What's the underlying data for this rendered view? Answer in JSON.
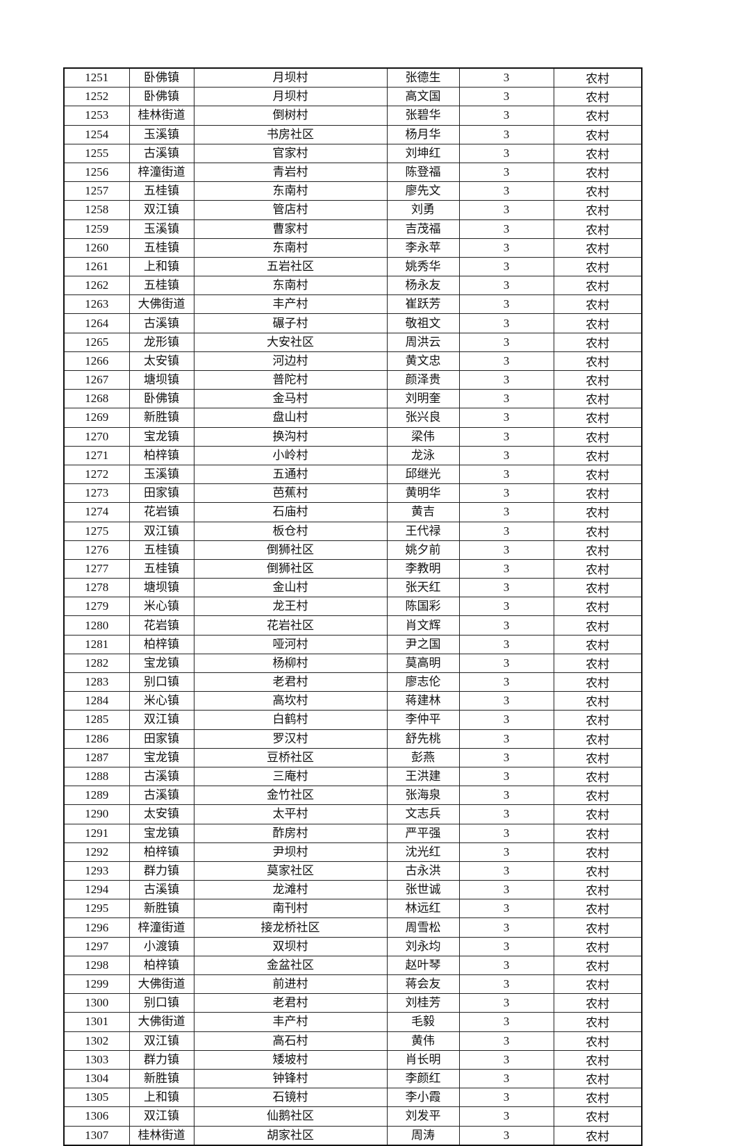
{
  "table": {
    "rows": [
      [
        "1251",
        "卧佛镇",
        "月坝村",
        "张德生",
        "3",
        "农村"
      ],
      [
        "1252",
        "卧佛镇",
        "月坝村",
        "高文国",
        "3",
        "农村"
      ],
      [
        "1253",
        "桂林街道",
        "倒树村",
        "张碧华",
        "3",
        "农村"
      ],
      [
        "1254",
        "玉溪镇",
        "书房社区",
        "杨月华",
        "3",
        "农村"
      ],
      [
        "1255",
        "古溪镇",
        "官家村",
        "刘坤红",
        "3",
        "农村"
      ],
      [
        "1256",
        "梓潼街道",
        "青岩村",
        "陈登福",
        "3",
        "农村"
      ],
      [
        "1257",
        "五桂镇",
        "东南村",
        "廖先文",
        "3",
        "农村"
      ],
      [
        "1258",
        "双江镇",
        "管店村",
        "刘勇",
        "3",
        "农村"
      ],
      [
        "1259",
        "玉溪镇",
        "曹家村",
        "吉茂福",
        "3",
        "农村"
      ],
      [
        "1260",
        "五桂镇",
        "东南村",
        "李永苹",
        "3",
        "农村"
      ],
      [
        "1261",
        "上和镇",
        "五岩社区",
        "姚秀华",
        "3",
        "农村"
      ],
      [
        "1262",
        "五桂镇",
        "东南村",
        "杨永友",
        "3",
        "农村"
      ],
      [
        "1263",
        "大佛街道",
        "丰产村",
        "崔跃芳",
        "3",
        "农村"
      ],
      [
        "1264",
        "古溪镇",
        "碾子村",
        "敬祖文",
        "3",
        "农村"
      ],
      [
        "1265",
        "龙形镇",
        "大安社区",
        "周洪云",
        "3",
        "农村"
      ],
      [
        "1266",
        "太安镇",
        "河边村",
        "黄文忠",
        "3",
        "农村"
      ],
      [
        "1267",
        "塘坝镇",
        "普陀村",
        "颜泽贵",
        "3",
        "农村"
      ],
      [
        "1268",
        "卧佛镇",
        "金马村",
        "刘明奎",
        "3",
        "农村"
      ],
      [
        "1269",
        "新胜镇",
        "盘山村",
        "张兴良",
        "3",
        "农村"
      ],
      [
        "1270",
        "宝龙镇",
        "换沟村",
        "梁伟",
        "3",
        "农村"
      ],
      [
        "1271",
        "柏梓镇",
        "小岭村",
        "龙泳",
        "3",
        "农村"
      ],
      [
        "1272",
        "玉溪镇",
        "五通村",
        "邱继光",
        "3",
        "农村"
      ],
      [
        "1273",
        "田家镇",
        "芭蕉村",
        "黄明华",
        "3",
        "农村"
      ],
      [
        "1274",
        "花岩镇",
        "石庙村",
        "黄吉",
        "3",
        "农村"
      ],
      [
        "1275",
        "双江镇",
        "板仓村",
        "王代禄",
        "3",
        "农村"
      ],
      [
        "1276",
        "五桂镇",
        "倒狮社区",
        "姚夕前",
        "3",
        "农村"
      ],
      [
        "1277",
        "五桂镇",
        "倒狮社区",
        "李教明",
        "3",
        "农村"
      ],
      [
        "1278",
        "塘坝镇",
        "金山村",
        "张天红",
        "3",
        "农村"
      ],
      [
        "1279",
        "米心镇",
        "龙王村",
        "陈国彩",
        "3",
        "农村"
      ],
      [
        "1280",
        "花岩镇",
        "花岩社区",
        "肖文辉",
        "3",
        "农村"
      ],
      [
        "1281",
        "柏梓镇",
        "哑河村",
        "尹之国",
        "3",
        "农村"
      ],
      [
        "1282",
        "宝龙镇",
        "杨柳村",
        "莫高明",
        "3",
        "农村"
      ],
      [
        "1283",
        "别口镇",
        "老君村",
        "廖志伦",
        "3",
        "农村"
      ],
      [
        "1284",
        "米心镇",
        "高坎村",
        "蒋建林",
        "3",
        "农村"
      ],
      [
        "1285",
        "双江镇",
        "白鹤村",
        "李仲平",
        "3",
        "农村"
      ],
      [
        "1286",
        "田家镇",
        "罗汉村",
        "舒先桃",
        "3",
        "农村"
      ],
      [
        "1287",
        "宝龙镇",
        "豆桥社区",
        "彭燕",
        "3",
        "农村"
      ],
      [
        "1288",
        "古溪镇",
        "三庵村",
        "王洪建",
        "3",
        "农村"
      ],
      [
        "1289",
        "古溪镇",
        "金竹社区",
        "张海泉",
        "3",
        "农村"
      ],
      [
        "1290",
        "太安镇",
        "太平村",
        "文志兵",
        "3",
        "农村"
      ],
      [
        "1291",
        "宝龙镇",
        "酢房村",
        "严平强",
        "3",
        "农村"
      ],
      [
        "1292",
        "柏梓镇",
        "尹坝村",
        "沈光红",
        "3",
        "农村"
      ],
      [
        "1293",
        "群力镇",
        "莫家社区",
        "古永洪",
        "3",
        "农村"
      ],
      [
        "1294",
        "古溪镇",
        "龙滩村",
        "张世诚",
        "3",
        "农村"
      ],
      [
        "1295",
        "新胜镇",
        "南刊村",
        "林远红",
        "3",
        "农村"
      ],
      [
        "1296",
        "梓潼街道",
        "接龙桥社区",
        "周雪松",
        "3",
        "农村"
      ],
      [
        "1297",
        "小渡镇",
        "双坝村",
        "刘永均",
        "3",
        "农村"
      ],
      [
        "1298",
        "柏梓镇",
        "金盆社区",
        "赵叶琴",
        "3",
        "农村"
      ],
      [
        "1299",
        "大佛街道",
        "前进村",
        "蒋会友",
        "3",
        "农村"
      ],
      [
        "1300",
        "别口镇",
        "老君村",
        "刘桂芳",
        "3",
        "农村"
      ],
      [
        "1301",
        "大佛街道",
        "丰产村",
        "毛毅",
        "3",
        "农村"
      ],
      [
        "1302",
        "双江镇",
        "高石村",
        "黄伟",
        "3",
        "农村"
      ],
      [
        "1303",
        "群力镇",
        "矮坡村",
        "肖长明",
        "3",
        "农村"
      ],
      [
        "1304",
        "新胜镇",
        "钟锋村",
        "李颜红",
        "3",
        "农村"
      ],
      [
        "1305",
        "上和镇",
        "石镜村",
        "李小霞",
        "3",
        "农村"
      ],
      [
        "1306",
        "双江镇",
        "仙鹅社区",
        "刘发平",
        "3",
        "农村"
      ],
      [
        "1307",
        "桂林街道",
        "胡家社区",
        "周涛",
        "3",
        "农村"
      ]
    ]
  }
}
